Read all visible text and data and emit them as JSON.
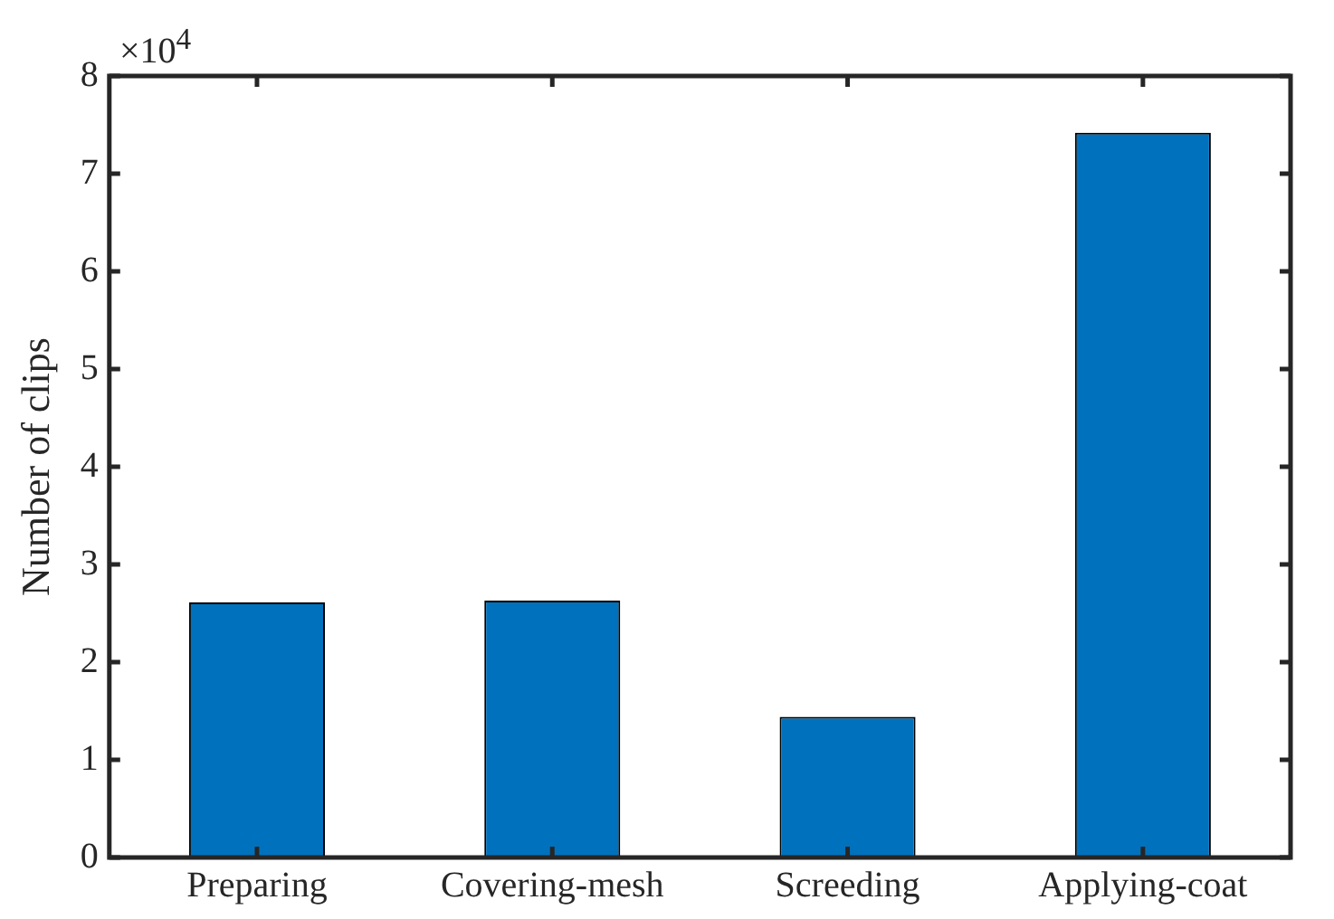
{
  "chart_data": {
    "type": "bar",
    "ylabel": "Number of clips",
    "categories": [
      "Preparing",
      "Covering-mesh",
      "Screeding",
      "Applying-coat"
    ],
    "values": [
      2.61,
      2.63,
      1.44,
      7.42
    ],
    "color": "#0072bd",
    "ylim": [
      0,
      8
    ],
    "yticks": [
      0,
      1,
      2,
      3,
      4,
      5,
      6,
      7,
      8
    ],
    "grid": false,
    "legend": false,
    "annotations": [
      "×10$^{4}$"
    ]
  }
}
